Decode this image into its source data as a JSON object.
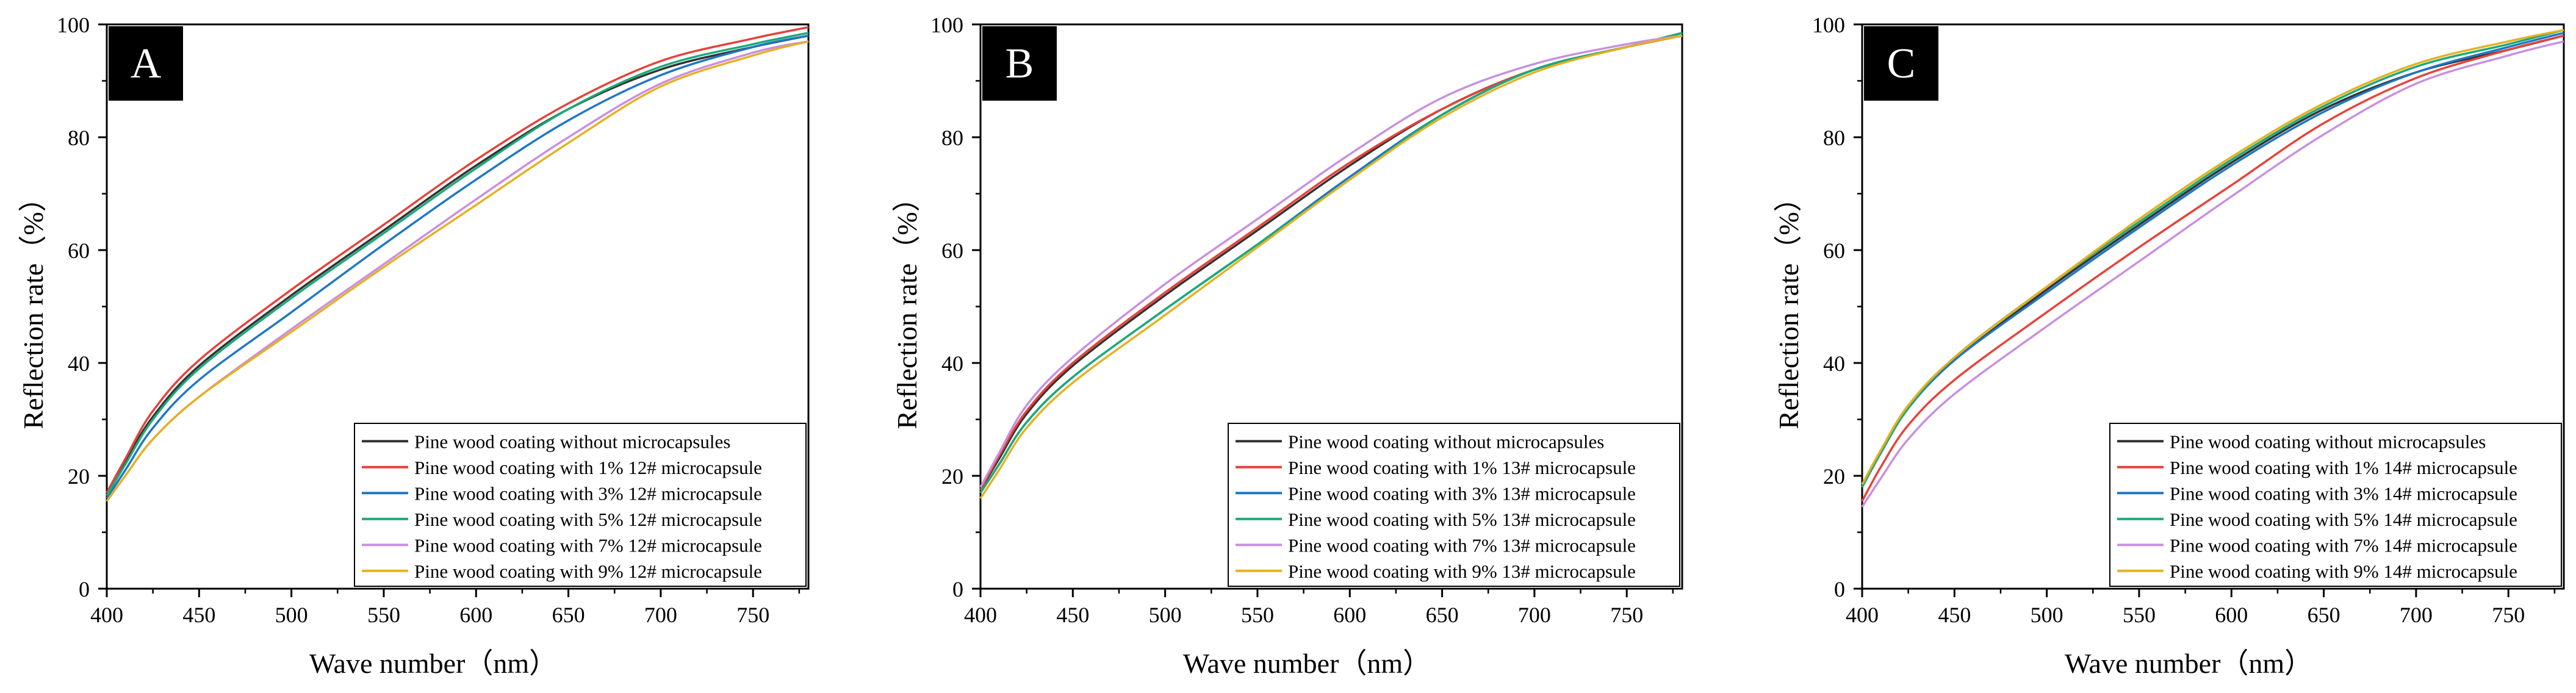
{
  "figure": {
    "panels_count": 3
  },
  "chart_data": [
    {
      "type": "line",
      "panel_label": "A",
      "xlabel": "Wave number（nm）",
      "ylabel": "Reflection rate（%）",
      "xlim": [
        400,
        780
      ],
      "ylim": [
        0,
        100
      ],
      "xticks": [
        400,
        450,
        500,
        550,
        600,
        650,
        700,
        750
      ],
      "yticks": [
        0,
        20,
        40,
        60,
        80,
        100
      ],
      "legend_position": "bottom-right",
      "x": [
        400,
        410,
        425,
        450,
        500,
        550,
        600,
        650,
        700,
        750,
        780
      ],
      "series": [
        {
          "name": "Pine wood coating without microcapsules",
          "color": "#333333",
          "values": [
            16.5,
            22.5,
            30.5,
            39.5,
            52,
            63.5,
            75,
            85,
            92,
            96,
            98
          ]
        },
        {
          "name": "Pine wood coating with 1% 12# microcapsule",
          "color": "#e8413a",
          "values": [
            17,
            23,
            31.5,
            40.5,
            53,
            64.5,
            76,
            86,
            93.5,
            97.5,
            99.5
          ]
        },
        {
          "name": "Pine wood coating with 3% 12# microcapsule",
          "color": "#1f77c4",
          "values": [
            16,
            21,
            28.5,
            37,
            49,
            61,
            72.5,
            83,
            91,
            96,
            98
          ]
        },
        {
          "name": "Pine wood coating with 5% 12# microcapsule",
          "color": "#1aaa7a",
          "values": [
            16.5,
            22,
            30,
            39,
            51.5,
            63,
            74.5,
            85,
            92.5,
            96.5,
            98.5
          ]
        },
        {
          "name": "Pine wood coating with 7% 12# microcapsule",
          "color": "#c98fe0",
          "values": [
            15.5,
            20,
            26.5,
            34,
            46,
            57.5,
            69,
            80,
            89.5,
            95,
            97
          ]
        },
        {
          "name": "Pine wood coating with 9% 12# microcapsule",
          "color": "#e6b021",
          "values": [
            15.5,
            20,
            26.5,
            34,
            45.5,
            57,
            68,
            79,
            89,
            94.5,
            97
          ]
        }
      ]
    },
    {
      "type": "line",
      "panel_label": "B",
      "xlabel": "Wave number（nm）",
      "ylabel": "Reflection rate（%）",
      "xlim": [
        400,
        780
      ],
      "ylim": [
        0,
        100
      ],
      "xticks": [
        400,
        450,
        500,
        550,
        600,
        650,
        700,
        750
      ],
      "yticks": [
        0,
        20,
        40,
        60,
        80,
        100
      ],
      "legend_position": "bottom-right",
      "x": [
        400,
        410,
        425,
        450,
        500,
        550,
        600,
        650,
        700,
        750,
        780
      ],
      "series": [
        {
          "name": "Pine wood coating without microcapsules",
          "color": "#333333",
          "values": [
            17.5,
            23,
            31,
            39.5,
            52,
            63.5,
            75,
            85,
            92,
            96,
            98
          ]
        },
        {
          "name": "Pine wood coating with 1% 13# microcapsule",
          "color": "#e8413a",
          "values": [
            17.5,
            23.5,
            31.5,
            40,
            52.5,
            64,
            75.5,
            85,
            92,
            96,
            98
          ]
        },
        {
          "name": "Pine wood coating with 3% 13# microcapsule",
          "color": "#1f77c4",
          "values": [
            17,
            22,
            29.5,
            37.5,
            49.5,
            61,
            73,
            84,
            92,
            96,
            98.5
          ]
        },
        {
          "name": "Pine wood coating with 5% 13# microcapsule",
          "color": "#1aaa7a",
          "values": [
            17,
            22,
            29.5,
            37.5,
            49.5,
            61,
            72.5,
            84,
            92,
            96,
            98.5
          ]
        },
        {
          "name": "Pine wood coating with 7% 13# microcapsule",
          "color": "#c98fe0",
          "values": [
            18,
            24,
            32.5,
            41,
            54,
            65.5,
            77,
            87,
            93,
            96.5,
            98
          ]
        },
        {
          "name": "Pine wood coating with 9% 13# microcapsule",
          "color": "#e6b021",
          "values": [
            16,
            21,
            28.5,
            36.5,
            48.5,
            60.5,
            72.5,
            83.5,
            91.5,
            96,
            98
          ]
        }
      ]
    },
    {
      "type": "line",
      "panel_label": "C",
      "xlabel": "Wave number（nm）",
      "ylabel": "Reflection rate（%）",
      "xlim": [
        400,
        780
      ],
      "ylim": [
        0,
        100
      ],
      "xticks": [
        400,
        450,
        500,
        550,
        600,
        650,
        700,
        750
      ],
      "yticks": [
        0,
        20,
        40,
        60,
        80,
        100
      ],
      "legend_position": "bottom-right",
      "x": [
        400,
        410,
        425,
        450,
        500,
        550,
        600,
        650,
        700,
        750,
        780
      ],
      "series": [
        {
          "name": "Pine wood coating without microcapsules",
          "color": "#333333",
          "values": [
            18,
            24,
            32,
            40.5,
            53,
            64.5,
            75.5,
            85,
            91.5,
            95.5,
            98
          ]
        },
        {
          "name": "Pine wood coating with 1% 14# microcapsule",
          "color": "#e8413a",
          "values": [
            15.5,
            21.5,
            29,
            37,
            49,
            60.5,
            71.5,
            82.5,
            90.5,
            95.5,
            98
          ]
        },
        {
          "name": "Pine wood coating with 3% 14# microcapsule",
          "color": "#1f77c4",
          "values": [
            18,
            24,
            32,
            40.5,
            52.5,
            64,
            75,
            84.5,
            91.5,
            96,
            98.5
          ]
        },
        {
          "name": "Pine wood coating with 5% 14# microcapsule",
          "color": "#1aaa7a",
          "values": [
            18,
            24,
            32,
            41,
            53.5,
            65,
            76,
            85.5,
            92.5,
            96.5,
            99
          ]
        },
        {
          "name": "Pine wood coating with 7% 14# microcapsule",
          "color": "#c98fe0",
          "values": [
            14.5,
            19.5,
            26.5,
            34.5,
            46.5,
            58,
            69.5,
            80.5,
            89.5,
            94.5,
            97
          ]
        },
        {
          "name": "Pine wood coating with 9% 14# microcapsule",
          "color": "#e6b021",
          "values": [
            18.5,
            24.5,
            32.5,
            41,
            53.5,
            65.5,
            76.5,
            86,
            93,
            97,
            99
          ]
        }
      ]
    }
  ]
}
